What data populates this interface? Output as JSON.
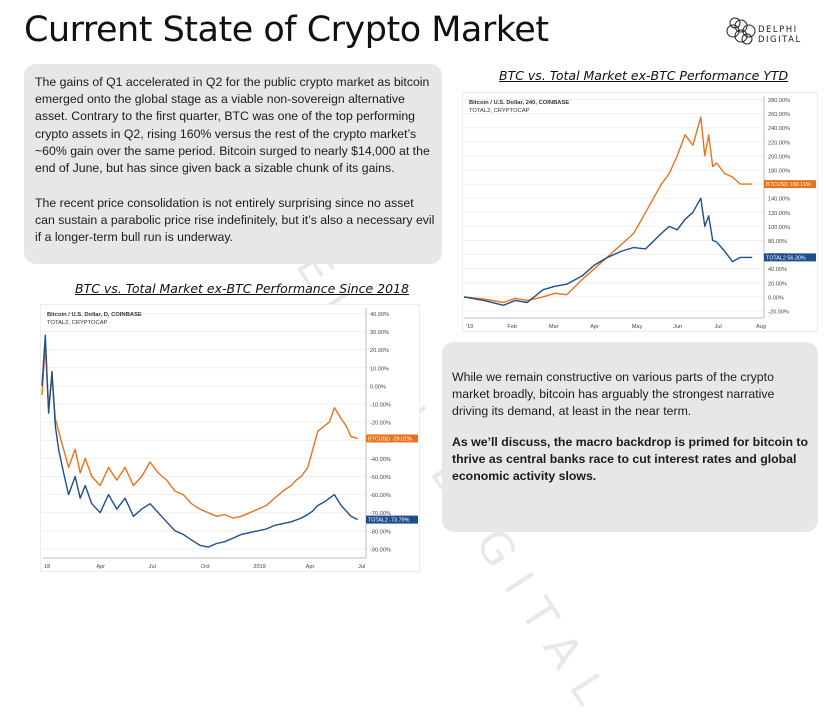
{
  "page": {
    "title": "Current State of Crypto Market",
    "logo_text": "DELPHI DIGITAL",
    "watermark": "DELPHI DIGITAL"
  },
  "intro": {
    "p1": "The gains of Q1 accelerated in Q2 for the public crypto market as bitcoin emerged onto the global stage as a viable non-sovereign alternative asset. Contrary to the first quarter, BTC was one of the top performing crypto assets in Q2, rising 160% versus the rest of the crypto market’s ~60% gain over the same period. Bitcoin surged to nearly $14,000 at the end of June, but has since given back a sizable chunk of its gains.",
    "p2": "The recent price consolidation is not entirely surprising since no asset can sustain a parabolic price rise indefinitely, but it’s also a necessary evil if a longer-term bull run is underway."
  },
  "outro": {
    "p1": "While we remain constructive on various parts of the crypto market broadly, bitcoin has arguably the strongest narrative driving its demand, at least in the near term.",
    "p2": "As we’ll discuss, the macro backdrop is primed for bitcoin to thrive as central banks race to cut interest rates and global economic activity slows."
  },
  "colors": {
    "btc": "#e8731e",
    "total2": "#1f4e8c",
    "grid": "#efefef"
  },
  "chart_data": [
    {
      "type": "line",
      "title": "BTC vs. Total Market ex-BTC Performance Since 2018",
      "legend": [
        "Bitcoin / U.S. Dollar, D, COINBASE",
        "TOTAL2, CRYPTOCAP"
      ],
      "x_ticks": [
        "18",
        "Apr",
        "Jul",
        "Oct",
        "2019",
        "Apr",
        "Jul"
      ],
      "y_ticks": [
        "40.00%",
        "30.00%",
        "20.00%",
        "10.00%",
        "0.00%",
        "-10.00%",
        "-20.00%",
        "-30.00%",
        "-40.00%",
        "-50.00%",
        "-60.00%",
        "-70.00%",
        "-80.00%",
        "-90.00%"
      ],
      "ylim": [
        -95,
        43
      ],
      "x_range": [
        0,
        19.5
      ],
      "last_labels": {
        "btc": "BTCUSD -29.01%",
        "total2": "TOTAL2 -73.79%"
      },
      "series": [
        {
          "name": "BTCUSD",
          "x": [
            0,
            0.2,
            0.4,
            0.6,
            0.8,
            1,
            1.3,
            1.6,
            2,
            2.3,
            2.6,
            3,
            3.5,
            4,
            4.5,
            5,
            5.5,
            6,
            6.5,
            7,
            7.5,
            8,
            8.5,
            9,
            9.5,
            10,
            10.5,
            11,
            11.5,
            12,
            12.5,
            13,
            13.5,
            14,
            14.5,
            15,
            15.3,
            15.6,
            16,
            16.3,
            16.6,
            17,
            17.3,
            17.6,
            18,
            18.3,
            18.6,
            19
          ],
          "values": [
            -5,
            22,
            -12,
            5,
            -18,
            -25,
            -35,
            -45,
            -35,
            -48,
            -40,
            -50,
            -55,
            -45,
            -52,
            -45,
            -55,
            -50,
            -42,
            -48,
            -52,
            -58,
            -60,
            -65,
            -68,
            -70,
            -72,
            -71,
            -73,
            -72,
            -70,
            -68,
            -66,
            -62,
            -58,
            -55,
            -52,
            -50,
            -45,
            -35,
            -25,
            -22,
            -20,
            -12,
            -18,
            -22,
            -28,
            -29
          ]
        },
        {
          "name": "TOTAL2",
          "x": [
            0,
            0.2,
            0.4,
            0.6,
            0.8,
            1,
            1.3,
            1.6,
            2,
            2.3,
            2.6,
            3,
            3.5,
            4,
            4.5,
            5,
            5.5,
            6,
            6.5,
            7,
            7.5,
            8,
            8.5,
            9,
            9.5,
            10,
            10.5,
            11,
            11.5,
            12,
            12.5,
            13,
            13.5,
            14,
            14.5,
            15,
            15.3,
            15.6,
            16,
            16.3,
            16.6,
            17,
            17.3,
            17.6,
            18,
            18.3,
            18.6,
            19
          ],
          "values": [
            0,
            28,
            -15,
            8,
            -22,
            -35,
            -48,
            -60,
            -50,
            -62,
            -55,
            -65,
            -70,
            -60,
            -68,
            -62,
            -72,
            -68,
            -65,
            -70,
            -75,
            -80,
            -82,
            -85,
            -88,
            -89,
            -87,
            -86,
            -84,
            -82,
            -81,
            -80,
            -79,
            -77,
            -76,
            -75,
            -74,
            -73,
            -71,
            -69,
            -66,
            -64,
            -62,
            -60,
            -66,
            -69,
            -72,
            -73.8
          ]
        }
      ]
    },
    {
      "type": "line",
      "title": "BTC vs. Total Market ex-BTC Performance YTD",
      "legend": [
        "Bitcoin / U.S. Dollar, 240, COINBASE",
        "TOTAL2, CRYPTOCAP"
      ],
      "x_ticks": [
        "'19",
        "Feb",
        "Mar",
        "Apr",
        "May",
        "Jun",
        "Jul",
        "Aug"
      ],
      "y_ticks": [
        "280.00%",
        "260.00%",
        "240.00%",
        "220.00%",
        "200.00%",
        "180.00%",
        "160.00%",
        "140.00%",
        "120.00%",
        "100.00%",
        "80.00%",
        "60.00%",
        "40.00%",
        "20.00%",
        "0.00%",
        "-20.00%"
      ],
      "ylim": [
        -30,
        285
      ],
      "x_range": [
        0,
        7.6
      ],
      "last_labels": {
        "btc": "BTCUSD 160.11%",
        "total2": "TOTAL2 56.30%"
      },
      "series": [
        {
          "name": "BTCUSD",
          "x": [
            0,
            0.5,
            1,
            1.3,
            1.6,
            2,
            2.3,
            2.6,
            3,
            3.3,
            3.6,
            4,
            4.3,
            4.6,
            5,
            5.2,
            5.4,
            5.6,
            5.8,
            6,
            6.1,
            6.2,
            6.3,
            6.4,
            6.6,
            6.8,
            7,
            7.3
          ],
          "values": [
            0,
            -3,
            -8,
            -2,
            -5,
            0,
            5,
            3,
            25,
            40,
            55,
            75,
            90,
            120,
            160,
            175,
            200,
            230,
            215,
            255,
            200,
            230,
            185,
            190,
            175,
            170,
            160,
            160
          ]
        },
        {
          "name": "TOTAL2",
          "x": [
            0,
            0.5,
            1,
            1.3,
            1.6,
            2,
            2.3,
            2.6,
            3,
            3.3,
            3.6,
            4,
            4.3,
            4.6,
            5,
            5.2,
            5.4,
            5.6,
            5.8,
            6,
            6.1,
            6.2,
            6.3,
            6.4,
            6.6,
            6.8,
            7,
            7.3
          ],
          "values": [
            0,
            -5,
            -12,
            -5,
            -8,
            10,
            15,
            18,
            30,
            45,
            55,
            65,
            70,
            68,
            90,
            100,
            95,
            110,
            120,
            140,
            100,
            115,
            80,
            78,
            65,
            50,
            56,
            56
          ]
        }
      ]
    }
  ]
}
